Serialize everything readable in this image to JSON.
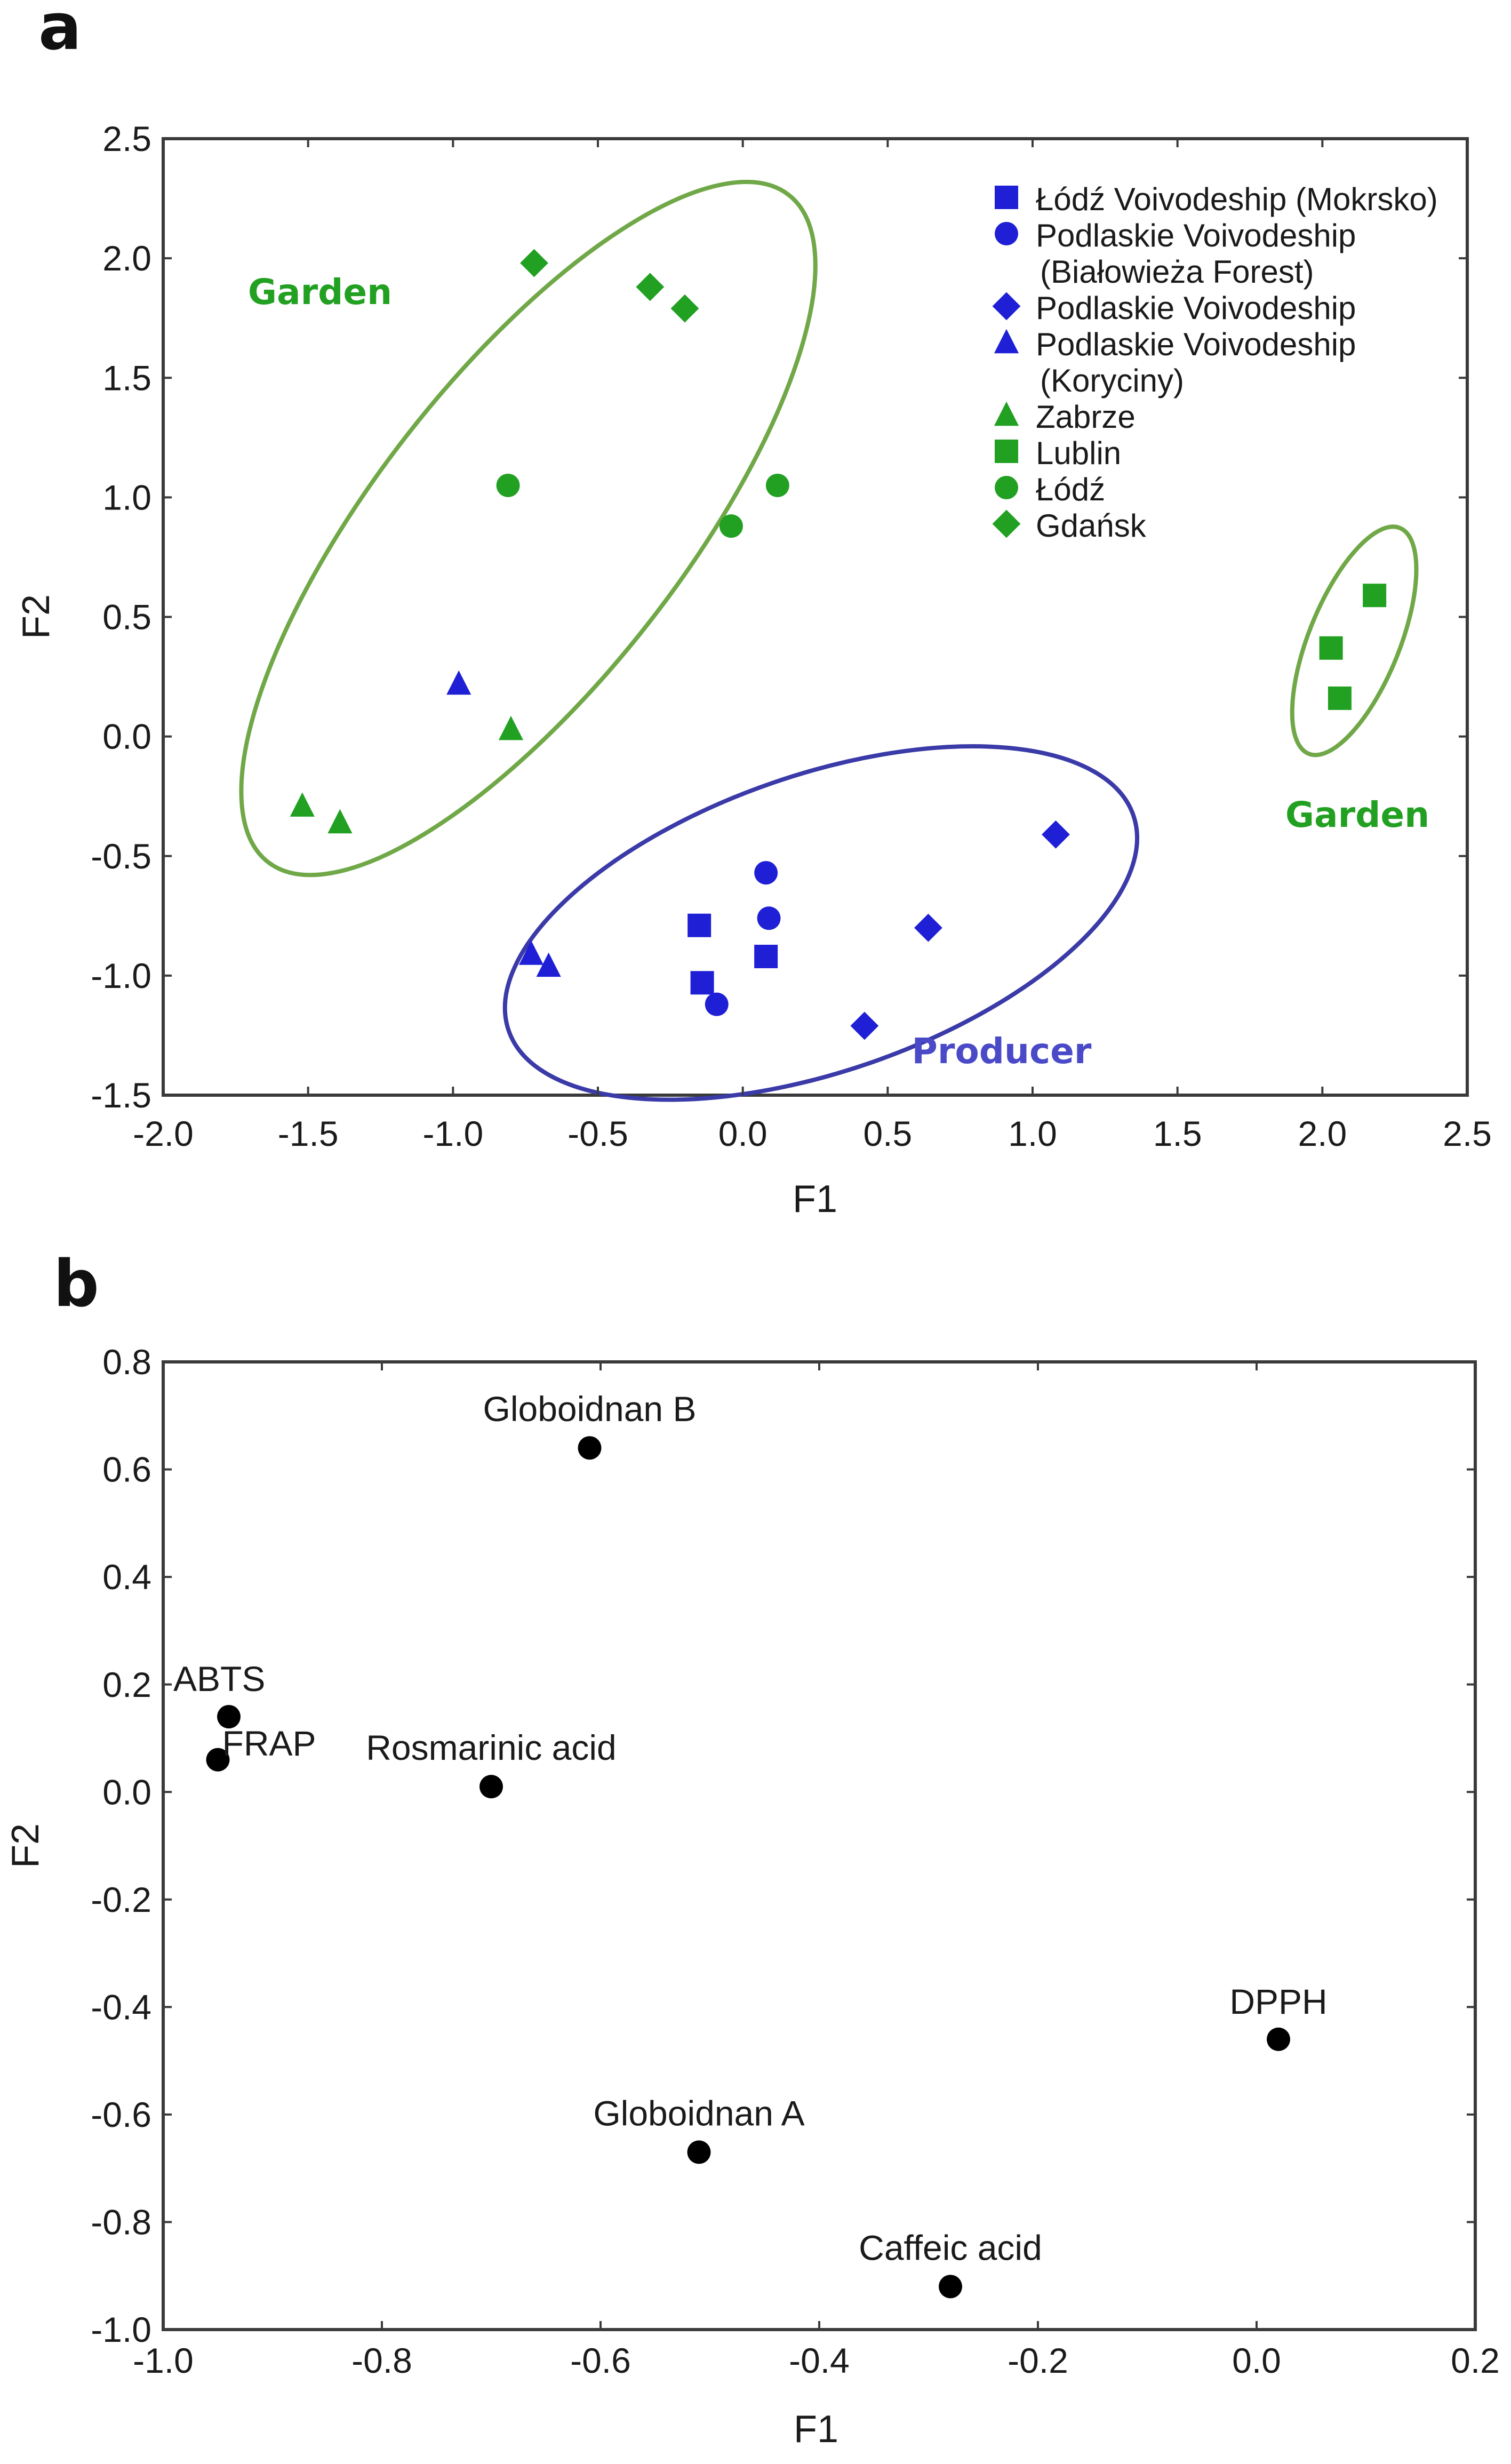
{
  "chart_data": [
    {
      "panel_label": "a",
      "type": "scatter",
      "xlabel": "F1",
      "ylabel": "F2",
      "xlim": [
        -2.0,
        2.5
      ],
      "ylim": [
        -1.5,
        2.5
      ],
      "x_ticks": [
        "-2.0",
        "-1.5",
        "-1.0",
        "-0.5",
        "0.0",
        "0.5",
        "1.0",
        "1.5",
        "2.0",
        "2.5"
      ],
      "y_ticks": [
        "-1.5",
        "-1.0",
        "-0.5",
        "0.0",
        "0.5",
        "1.0",
        "1.5",
        "2.0",
        "2.5"
      ],
      "colors": {
        "blue": "#1f1fd6",
        "green": "#22a022",
        "ellipse_green": "#70a848",
        "ellipse_blue": "#3a3aa8"
      },
      "legend": [
        {
          "marker": "square",
          "color": "blue",
          "lines": [
            "Łódź Voivodeship (Mokrsko)"
          ]
        },
        {
          "marker": "circle",
          "color": "blue",
          "lines": [
            "Podlaskie Voivodeship",
            "(Białowieża Forest)"
          ]
        },
        {
          "marker": "diamond",
          "color": "blue",
          "lines": [
            "Podlaskie Voivodeship"
          ]
        },
        {
          "marker": "triangle",
          "color": "blue",
          "lines": [
            "Podlaskie Voivodeship",
            "(Koryciny)"
          ]
        },
        {
          "marker": "triangle",
          "color": "green",
          "lines": [
            "Zabrze"
          ]
        },
        {
          "marker": "square",
          "color": "green",
          "lines": [
            "Lublin"
          ]
        },
        {
          "marker": "circle",
          "color": "green",
          "lines": [
            "Łódź"
          ]
        },
        {
          "marker": "diamond",
          "color": "green",
          "lines": [
            "Gdańsk"
          ]
        }
      ],
      "series": [
        {
          "name": "Łódź Voivodeship (Mokrsko)",
          "marker": "square",
          "color": "blue",
          "points": [
            [
              -0.15,
              -0.79
            ],
            [
              -0.14,
              -1.03
            ],
            [
              0.08,
              -0.92
            ]
          ]
        },
        {
          "name": "Podlaskie Voivodeship (Białowieża Forest)",
          "marker": "circle",
          "color": "blue",
          "points": [
            [
              0.08,
              -0.57
            ],
            [
              0.09,
              -0.76
            ],
            [
              -0.09,
              -1.12
            ]
          ]
        },
        {
          "name": "Podlaskie Voivodeship",
          "marker": "diamond",
          "color": "blue",
          "points": [
            [
              1.08,
              -0.41
            ],
            [
              0.64,
              -0.8
            ],
            [
              0.42,
              -1.21
            ]
          ]
        },
        {
          "name": "Podlaskie Voivodeship (Koryciny)",
          "marker": "triangle",
          "color": "blue",
          "points": [
            [
              -0.98,
              0.22
            ],
            [
              -0.73,
              -0.91
            ],
            [
              -0.67,
              -0.96
            ]
          ]
        },
        {
          "name": "Zabrze",
          "marker": "triangle",
          "color": "green",
          "points": [
            [
              -0.8,
              0.03
            ],
            [
              -1.52,
              -0.29
            ],
            [
              -1.39,
              -0.36
            ]
          ]
        },
        {
          "name": "Lublin",
          "marker": "square",
          "color": "green",
          "points": [
            [
              2.18,
              0.59
            ],
            [
              2.03,
              0.37
            ],
            [
              2.06,
              0.16
            ]
          ]
        },
        {
          "name": "Łódź",
          "marker": "circle",
          "color": "green",
          "points": [
            [
              -0.81,
              1.05
            ],
            [
              0.12,
              1.05
            ],
            [
              -0.04,
              0.88
            ]
          ]
        },
        {
          "name": "Gdańsk",
          "marker": "diamond",
          "color": "green",
          "points": [
            [
              -0.72,
              1.98
            ],
            [
              -0.32,
              1.88
            ],
            [
              -0.2,
              1.79
            ]
          ]
        }
      ],
      "groups": [
        {
          "label": "Garden",
          "color": "green",
          "ellipse": {
            "cx": -0.74,
            "cy": 0.87,
            "rx": 1.46,
            "ry": 0.64,
            "angle_deg": -52
          }
        },
        {
          "label": "Garden",
          "color": "green",
          "ellipse": {
            "cx": 2.11,
            "cy": 0.4,
            "rx": 0.42,
            "ry": 0.19,
            "angle_deg": -68
          }
        },
        {
          "label": "Producer",
          "color": "blue",
          "ellipse": {
            "cx": 0.27,
            "cy": -0.78,
            "rx": 1.14,
            "ry": 0.62,
            "angle_deg": -19
          }
        }
      ]
    },
    {
      "panel_label": "b",
      "type": "scatter",
      "xlabel": "F1",
      "ylabel": "F2",
      "xlim": [
        -1.0,
        0.2
      ],
      "ylim": [
        -1.0,
        0.8
      ],
      "x_ticks": [
        "-1.0",
        "-0.8",
        "-0.6",
        "-0.4",
        "-0.2",
        "0.0",
        "0.2"
      ],
      "y_ticks": [
        "-1.0",
        "-0.8",
        "-0.6",
        "-0.4",
        "-0.2",
        "0.0",
        "0.2",
        "0.4",
        "0.6",
        "0.8"
      ],
      "color": "#000000",
      "points": [
        {
          "label": "Globoidnan B",
          "x": -0.61,
          "y": 0.64
        },
        {
          "label": "ABTS",
          "x": -0.94,
          "y": 0.14
        },
        {
          "label": "FRAP",
          "x": -0.95,
          "y": 0.06
        },
        {
          "label": "Rosmarinic acid",
          "x": -0.7,
          "y": 0.01
        },
        {
          "label": "DPPH",
          "x": 0.02,
          "y": -0.46
        },
        {
          "label": "Globoidnan A",
          "x": -0.51,
          "y": -0.67
        },
        {
          "label": "Caffeic acid",
          "x": -0.28,
          "y": -0.92
        }
      ]
    }
  ]
}
